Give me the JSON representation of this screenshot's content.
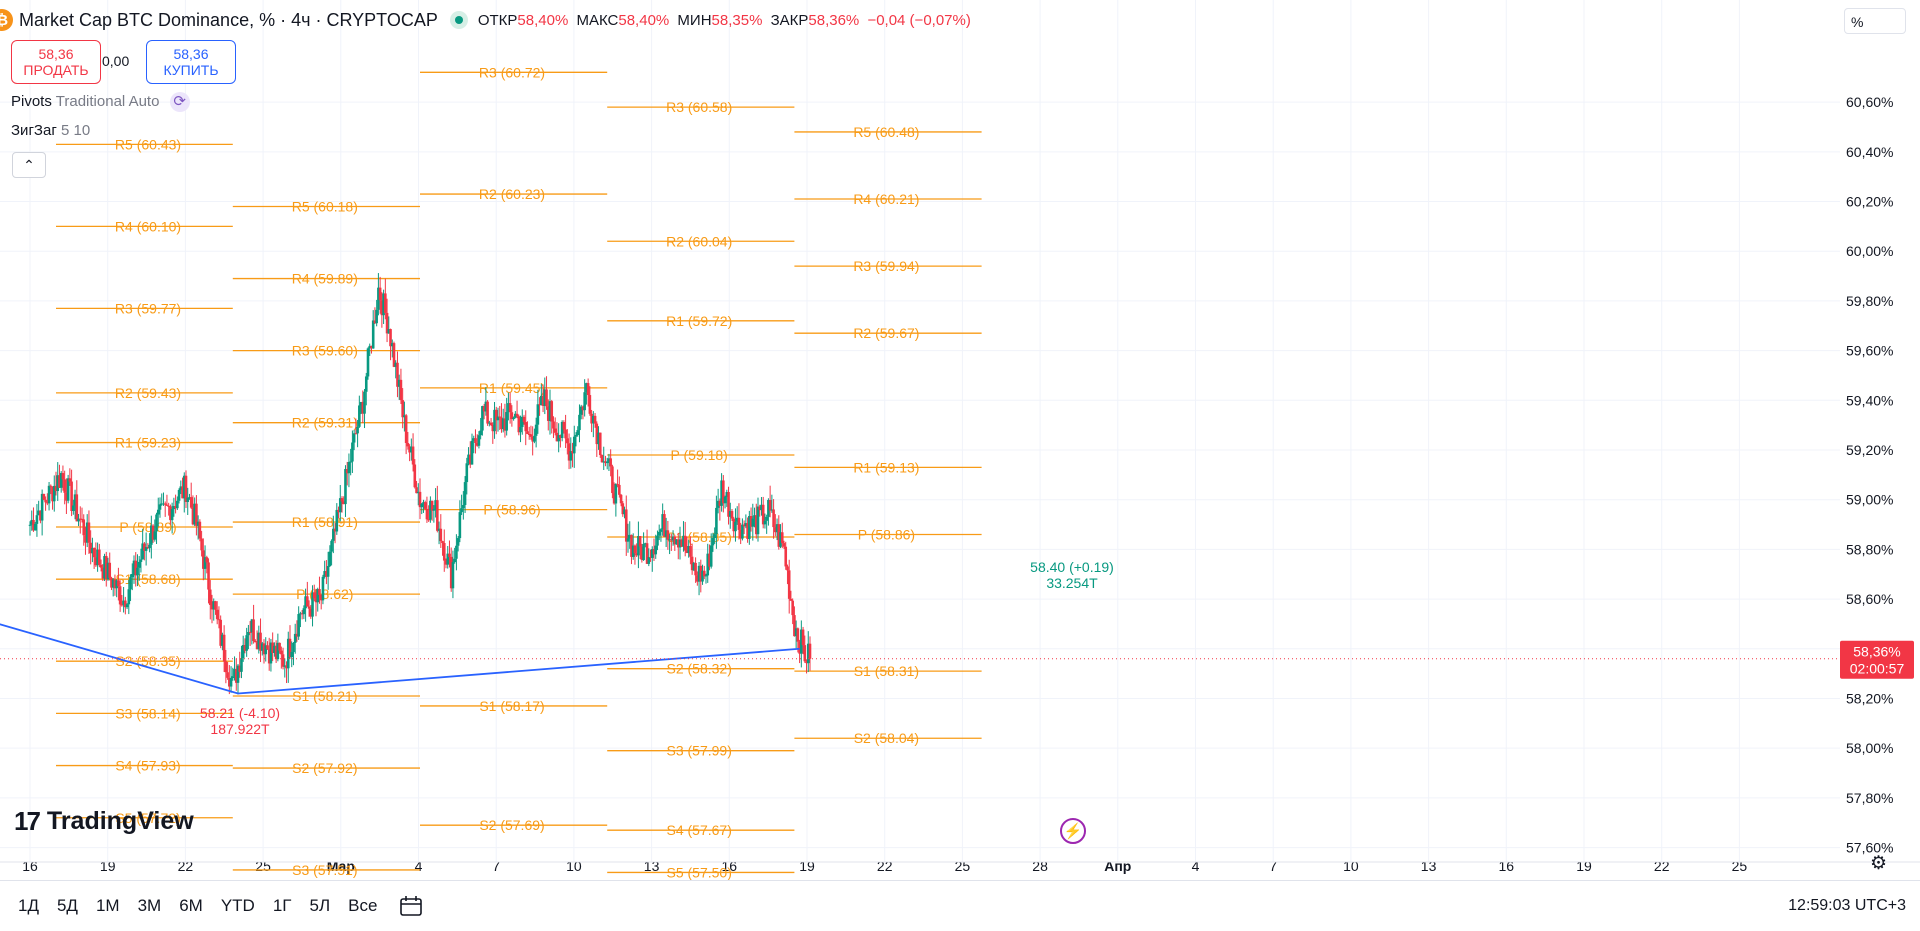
{
  "header": {
    "symbol": "Market Cap BTC Dominance, % · 4ч · CRYPTOCAP",
    "open_label": "ОТКР",
    "open_value": "58,40%",
    "high_label": "МАКС",
    "high_value": "58,40%",
    "low_label": "МИН",
    "low_value": "58,35%",
    "close_label": "ЗАКР",
    "close_value": "58,36%",
    "change": "−0,04 (−0,07%)"
  },
  "trade": {
    "sell_price": "58,36",
    "sell_label": "ПРОДАТЬ",
    "spread": "0,00",
    "buy_price": "58,36",
    "buy_label": "КУПИТЬ"
  },
  "indicators": {
    "pivots_name": "Pivots",
    "pivots_params": "Traditional Auto",
    "zigzag_name": "ЗигЗаг",
    "zigzag_params": "5 10"
  },
  "unit_label": "%",
  "brand": "TradingView",
  "timeframes": [
    "1Д",
    "5Д",
    "1М",
    "3М",
    "6М",
    "YTD",
    "1Г",
    "5Л",
    "Все"
  ],
  "clock": "12:59:03 UTC+3",
  "colors": {
    "up": "#089981",
    "down": "#f23645",
    "pivot": "#f89b17",
    "zigzag": "#2962ff"
  },
  "icons": {
    "collapse": "chevron-up-icon",
    "cycle": "refresh-icon",
    "lightning": "lightning-icon",
    "settings": "gear-icon",
    "calendar": "calendar-icon"
  },
  "chart_data": {
    "type": "candlestick",
    "yaxis": {
      "ticks": [
        "60,60%",
        "60,40%",
        "60,20%",
        "60,00%",
        "59,80%",
        "59,60%",
        "59,40%",
        "59,20%",
        "59,00%",
        "58,80%",
        "58,60%",
        "58,40%",
        "58,20%",
        "58,00%",
        "57,80%",
        "57,60%"
      ]
    },
    "ylim": [
      57.55,
      60.85
    ],
    "xaxis": {
      "ticks": [
        "16",
        "19",
        "22",
        "25",
        "Мар",
        "4",
        "7",
        "10",
        "13",
        "16",
        "19",
        "22",
        "25",
        "28",
        "Апр",
        "4",
        "7",
        "10",
        "13",
        "16",
        "19",
        "22",
        "25"
      ]
    },
    "last_price": {
      "value": 58.36,
      "label": "58,36%",
      "countdown": "02:00:57"
    },
    "close_path": [
      [
        0,
        58.9
      ],
      [
        3,
        59.1
      ],
      [
        6,
        58.8
      ],
      [
        9,
        58.6
      ],
      [
        12,
        58.9
      ],
      [
        15,
        59.05
      ],
      [
        16,
        58.9
      ],
      [
        18,
        58.5
      ],
      [
        19.5,
        58.25
      ],
      [
        21,
        58.5
      ],
      [
        23,
        58.4
      ],
      [
        24.5,
        58.35
      ],
      [
        26,
        58.55
      ],
      [
        28,
        58.6
      ],
      [
        30,
        59.0
      ],
      [
        32,
        59.4
      ],
      [
        33.5,
        59.85
      ],
      [
        34.5,
        59.7
      ],
      [
        36,
        59.3
      ],
      [
        37.5,
        59.0
      ],
      [
        39,
        58.95
      ],
      [
        40.5,
        58.7
      ],
      [
        42,
        59.1
      ],
      [
        43.5,
        59.35
      ],
      [
        45,
        59.3
      ],
      [
        46.5,
        59.35
      ],
      [
        48,
        59.25
      ],
      [
        49.5,
        59.4
      ],
      [
        50.5,
        59.3
      ],
      [
        52,
        59.2
      ],
      [
        53.5,
        59.45
      ],
      [
        55,
        59.2
      ],
      [
        56.5,
        59.0
      ],
      [
        58,
        58.8
      ],
      [
        59.5,
        58.8
      ],
      [
        61,
        58.9
      ],
      [
        62.5,
        58.85
      ],
      [
        64,
        58.7
      ],
      [
        65,
        58.7
      ],
      [
        66.5,
        59.05
      ],
      [
        68,
        58.9
      ],
      [
        69.5,
        58.9
      ],
      [
        71,
        58.95
      ],
      [
        72.5,
        58.8
      ],
      [
        73.5,
        58.5
      ],
      [
        74.5,
        58.38
      ],
      [
        75,
        58.36
      ]
    ],
    "zigzag": [
      [
        -3,
        58.5
      ],
      [
        20,
        58.22
      ],
      [
        74,
        58.4
      ]
    ],
    "zigzag_labels": [
      {
        "text": "58.21 (-4.10)",
        "volume": "187.922T"
      },
      {
        "text": "58.40 (+0.19)",
        "volume": "33.254T"
      }
    ],
    "pivot_sets": [
      {
        "x": [
          -2,
          2.5
        ],
        "levels": []
      },
      {
        "x": [
          2.5,
          19.5
        ],
        "levels": [
          [
            "R5",
            "60.43",
            60.43
          ],
          [
            "R4",
            "60.10",
            60.1
          ],
          [
            "R3",
            "59.77",
            59.77
          ],
          [
            "R2",
            "59.43",
            59.43
          ],
          [
            "R1",
            "59.23",
            59.23
          ],
          [
            "P",
            "58.89",
            58.89
          ],
          [
            "S1",
            "58.68",
            58.68
          ],
          [
            "S2",
            "58.35",
            58.35
          ],
          [
            "S3",
            "58.14",
            58.14
          ],
          [
            "S4",
            "57.93",
            57.93
          ],
          [
            "S5",
            "57.72",
            57.72
          ]
        ]
      },
      {
        "x": [
          19.5,
          37.5
        ],
        "levels": [
          [
            "R5",
            "60.18",
            60.18
          ],
          [
            "R4",
            "59.89",
            59.89
          ],
          [
            "R3",
            "59.60",
            59.6
          ],
          [
            "R2",
            "59.31",
            59.31
          ],
          [
            "R1",
            "58.91",
            58.91
          ],
          [
            "P",
            "58.62",
            58.62
          ],
          [
            "S1",
            "58.21",
            58.21
          ],
          [
            "S2",
            "57.92",
            57.92
          ],
          [
            "S3",
            "57.51",
            57.51
          ]
        ]
      },
      {
        "x": [
          37.5,
          55.5
        ],
        "levels": [
          [
            "R3",
            "60.72",
            60.72
          ],
          [
            "R2",
            "60.23",
            60.23
          ],
          [
            "R1",
            "59.45",
            59.45
          ],
          [
            "P",
            "58.96",
            58.96
          ],
          [
            "S1",
            "58.17",
            58.17
          ],
          [
            "S2",
            "57.69",
            57.69
          ]
        ]
      },
      {
        "x": [
          55.5,
          73.5
        ],
        "levels": [
          [
            "R3",
            "60.58",
            60.58
          ],
          [
            "R2",
            "60.04",
            60.04
          ],
          [
            "R1",
            "59.72",
            59.72
          ],
          [
            "P",
            "59.18",
            59.18
          ],
          [
            "S1",
            "58.85",
            58.85
          ],
          [
            "S2",
            "58.32",
            58.32
          ],
          [
            "S3",
            "57.99",
            57.99
          ],
          [
            "S4",
            "57.67",
            57.67
          ],
          [
            "S5",
            "57.50",
            57.5
          ]
        ]
      },
      {
        "x": [
          73.5,
          91.5
        ],
        "levels": [
          [
            "R5",
            "60.48",
            60.48
          ],
          [
            "R4",
            "60.21",
            60.21
          ],
          [
            "R3",
            "59.94",
            59.94
          ],
          [
            "R2",
            "59.67",
            59.67
          ],
          [
            "R1",
            "59.13",
            59.13
          ],
          [
            "P",
            "58.86",
            58.86
          ],
          [
            "S1",
            "58.31",
            58.31
          ],
          [
            "S2",
            "58.04",
            58.04
          ]
        ]
      }
    ]
  }
}
